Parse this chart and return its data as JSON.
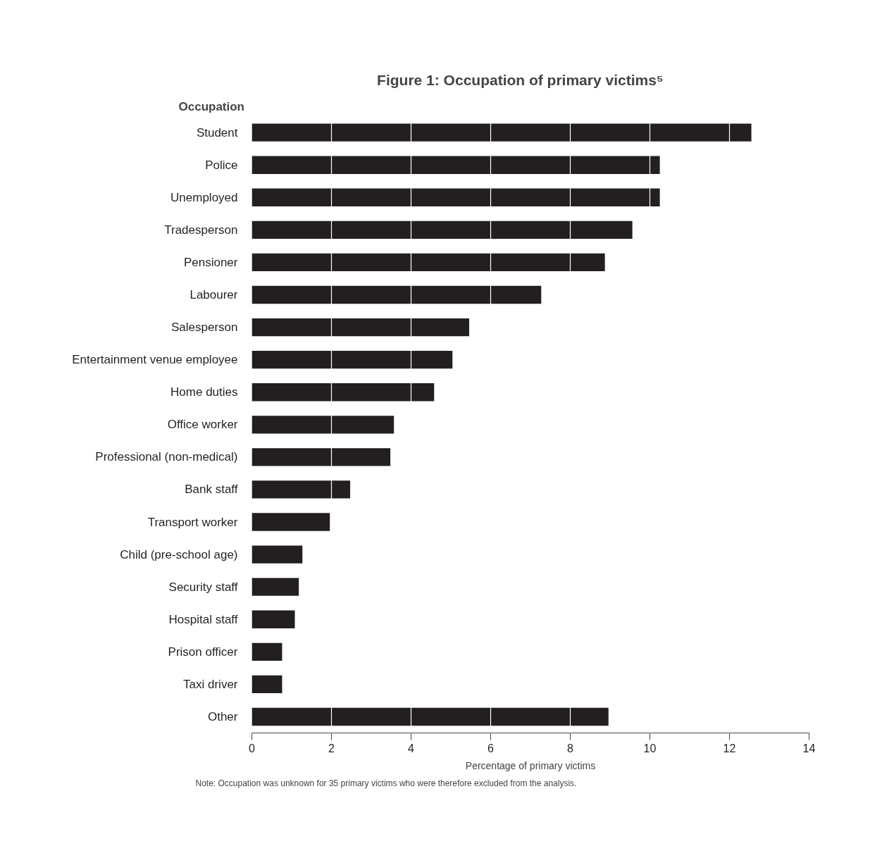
{
  "chart_data": {
    "type": "bar",
    "orientation": "horizontal",
    "title": "Figure 1:      Occupation of primary victims⁵",
    "ylabel": "Occupation",
    "xlabel": "Percentage of primary victims",
    "categories": [
      "Student",
      "Police",
      "Unemployed",
      "Tradesperson",
      "Pensioner",
      "Labourer",
      "Salesperson",
      "Entertainment venue employee",
      "Home duties",
      "Office worker",
      "Professional (non-medical)",
      "Bank staff",
      "Transport worker",
      "Child (pre-school age)",
      "Security staff",
      "Hospital staff",
      "Prison officer",
      "Taxi driver",
      "Other"
    ],
    "values": [
      12.55,
      10.25,
      10.25,
      9.56,
      8.87,
      7.27,
      5.46,
      5.04,
      4.58,
      3.57,
      3.48,
      2.47,
      1.96,
      1.27,
      1.18,
      1.08,
      0.76,
      0.76,
      8.96
    ],
    "color": "#231f20",
    "xlim": [
      0,
      14
    ],
    "xticks": [
      0,
      2,
      4,
      6,
      8,
      10,
      12,
      14
    ],
    "grid": "x",
    "annotations": [
      "Note:  Occupation was unknown for 35 primary victims who were therefore excluded from the analysis."
    ]
  }
}
